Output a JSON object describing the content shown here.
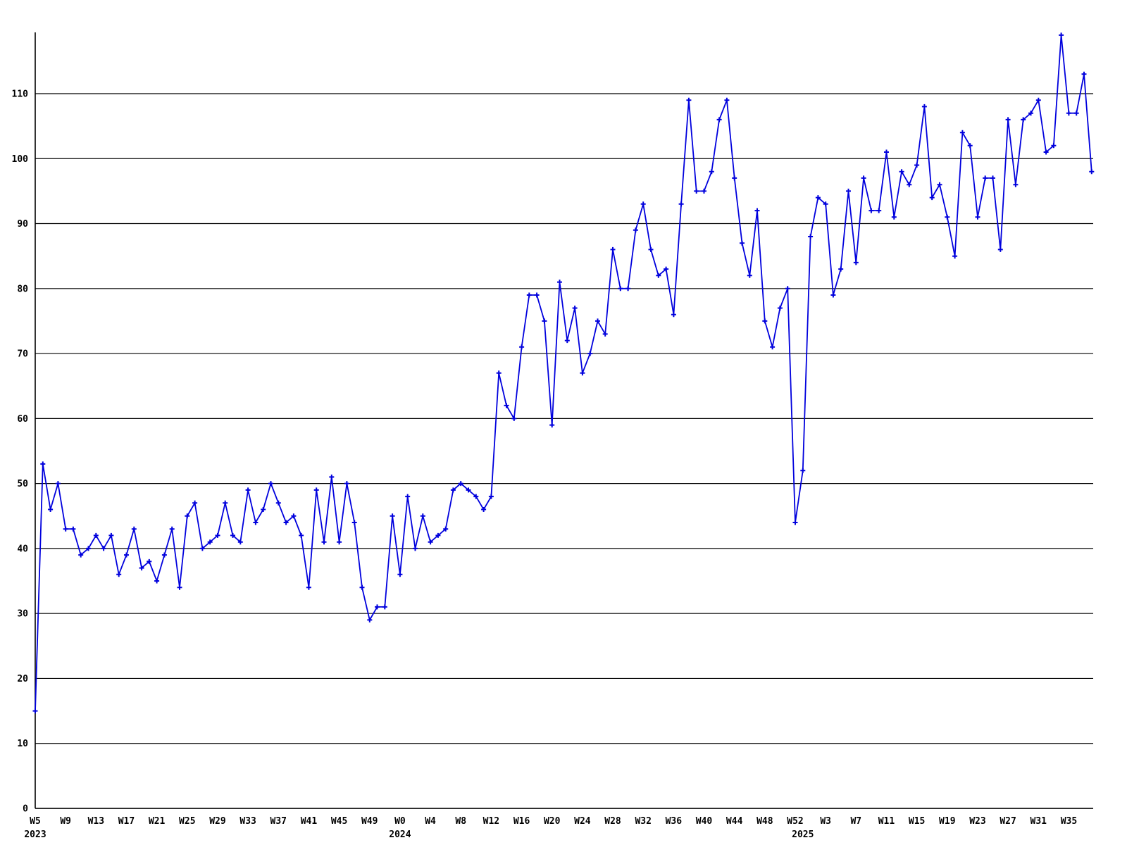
{
  "chart_data": {
    "type": "line",
    "title": "",
    "xlabel": "",
    "ylabel": "",
    "x_unit": "week",
    "start_point": {
      "year": 2023,
      "week": "W5"
    },
    "end_point": {
      "year": 2025,
      "week": "W38"
    },
    "series_name": "weekly-series",
    "line_color": "#0000dd",
    "marker_style": "plus",
    "grid_color": "#000000",
    "background_color": "#ffffff",
    "ylim": [
      0,
      119.5
    ],
    "y_ticks": [
      0,
      10,
      20,
      30,
      40,
      50,
      60,
      70,
      80,
      90,
      100,
      110
    ],
    "grid": true,
    "legend": "none",
    "values": [
      15,
      53,
      46,
      50,
      43,
      43,
      39,
      40,
      42,
      40,
      42,
      36,
      39,
      43,
      37,
      38,
      35,
      39,
      43,
      34,
      45,
      47,
      40,
      41,
      42,
      47,
      42,
      41,
      49,
      44,
      46,
      50,
      47,
      44,
      45,
      42,
      34,
      49,
      41,
      51,
      41,
      50,
      44,
      34,
      29,
      31,
      31,
      45,
      36,
      48,
      40,
      45,
      41,
      42,
      43,
      49,
      50,
      49,
      48,
      46,
      48,
      67,
      62,
      60,
      71,
      79,
      79,
      75,
      59,
      81,
      72,
      77,
      67,
      70,
      75,
      73,
      86,
      80,
      80,
      89,
      93,
      86,
      82,
      83,
      76,
      93,
      109,
      95,
      95,
      98,
      106,
      109,
      97,
      87,
      82,
      92,
      75,
      71,
      77,
      80,
      44,
      52,
      88,
      94,
      93,
      79,
      83,
      95,
      84,
      97,
      92,
      92,
      101,
      91,
      98,
      96,
      99,
      108,
      94,
      96,
      91,
      85,
      104,
      102,
      91,
      97,
      97,
      86,
      106,
      96,
      106,
      107,
      109,
      101,
      102,
      119,
      107,
      107,
      113,
      98
    ],
    "x_ticks": [
      {
        "index": 0,
        "label": "W5"
      },
      {
        "index": 4,
        "label": "W9"
      },
      {
        "index": 8,
        "label": "W13"
      },
      {
        "index": 12,
        "label": "W17"
      },
      {
        "index": 16,
        "label": "W21"
      },
      {
        "index": 20,
        "label": "W25"
      },
      {
        "index": 24,
        "label": "W29"
      },
      {
        "index": 28,
        "label": "W33"
      },
      {
        "index": 32,
        "label": "W37"
      },
      {
        "index": 36,
        "label": "W41"
      },
      {
        "index": 40,
        "label": "W45"
      },
      {
        "index": 44,
        "label": "W49"
      },
      {
        "index": 48,
        "label": "W0"
      },
      {
        "index": 52,
        "label": "W4"
      },
      {
        "index": 56,
        "label": "W8"
      },
      {
        "index": 60,
        "label": "W12"
      },
      {
        "index": 64,
        "label": "W16"
      },
      {
        "index": 68,
        "label": "W20"
      },
      {
        "index": 72,
        "label": "W24"
      },
      {
        "index": 76,
        "label": "W28"
      },
      {
        "index": 80,
        "label": "W32"
      },
      {
        "index": 84,
        "label": "W36"
      },
      {
        "index": 88,
        "label": "W40"
      },
      {
        "index": 92,
        "label": "W44"
      },
      {
        "index": 96,
        "label": "W48"
      },
      {
        "index": 100,
        "label": "W52"
      },
      {
        "index": 104,
        "label": "W3"
      },
      {
        "index": 108,
        "label": "W7"
      },
      {
        "index": 112,
        "label": "W11"
      },
      {
        "index": 116,
        "label": "W15"
      },
      {
        "index": 120,
        "label": "W19"
      },
      {
        "index": 124,
        "label": "W23"
      },
      {
        "index": 128,
        "label": "W27"
      },
      {
        "index": 132,
        "label": "W31"
      },
      {
        "index": 136,
        "label": "W35"
      }
    ],
    "year_labels": [
      {
        "index": 0,
        "text": "2023"
      },
      {
        "index": 48,
        "text": "2024"
      },
      {
        "index": 101,
        "text": "2025"
      }
    ]
  }
}
